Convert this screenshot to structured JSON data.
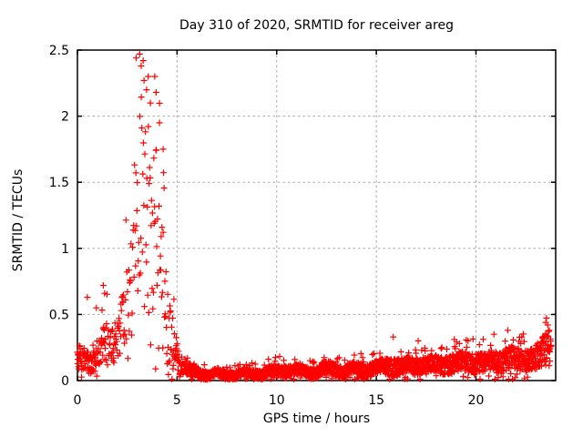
{
  "chart_data": {
    "type": "scatter",
    "title": "Day 310 of 2020, SRMTID for receiver areg",
    "xlabel": "GPS time / hours",
    "ylabel": "SRMTID / TECUs",
    "xlim": [
      0,
      24
    ],
    "ylim": [
      0,
      2.5
    ],
    "xticks": {
      "values": [
        0,
        5,
        10,
        15,
        20
      ],
      "labels": [
        "0",
        "5",
        "10",
        "15",
        "20"
      ]
    },
    "yticks": {
      "values": [
        0,
        0.5,
        1,
        1.5,
        2,
        2.5
      ],
      "labels": [
        "0",
        "0.5",
        "1",
        "1.5",
        "2",
        "2.5"
      ]
    },
    "grid": true,
    "legend": "none",
    "marker": "plus",
    "marker_size_px": 7,
    "marker_color": "#ff0000",
    "grid_color": "#a8a8a8",
    "border_color": "#000000",
    "background_color": "#ffffff",
    "series": [
      {
        "name": "SRMTID",
        "representation": "density_envelope",
        "x_start": 0,
        "x_end": 23.78,
        "envelope_columns": [
          "x_hours",
          "mean_tecu",
          "half_spread_tecu",
          "points_per_hour"
        ],
        "envelope": [
          [
            0.0,
            0.18,
            0.11,
            75
          ],
          [
            0.4,
            0.15,
            0.09,
            72
          ],
          [
            0.75,
            0.12,
            0.07,
            68
          ],
          [
            1.0,
            0.2,
            0.12,
            60
          ],
          [
            1.35,
            0.3,
            0.18,
            55
          ],
          [
            1.7,
            0.24,
            0.13,
            52
          ],
          [
            2.0,
            0.32,
            0.16,
            50
          ],
          [
            2.3,
            0.45,
            0.25,
            48
          ],
          [
            2.6,
            0.7,
            0.42,
            45
          ],
          [
            2.85,
            1.05,
            0.65,
            42
          ],
          [
            3.2,
            1.5,
            0.95,
            40
          ],
          [
            3.45,
            1.4,
            0.92,
            40
          ],
          [
            3.7,
            1.2,
            0.8,
            42
          ],
          [
            4.0,
            1.05,
            0.7,
            45
          ],
          [
            4.25,
            0.8,
            0.58,
            48
          ],
          [
            4.5,
            0.5,
            0.38,
            52
          ],
          [
            4.8,
            0.27,
            0.19,
            60
          ],
          [
            5.1,
            0.14,
            0.1,
            72
          ],
          [
            5.5,
            0.09,
            0.055,
            90
          ],
          [
            6.0,
            0.06,
            0.04,
            112
          ],
          [
            6.5,
            0.05,
            0.032,
            118
          ],
          [
            7.5,
            0.048,
            0.03,
            120
          ],
          [
            8.5,
            0.052,
            0.032,
            120
          ],
          [
            9.5,
            0.06,
            0.035,
            120
          ],
          [
            10.3,
            0.08,
            0.045,
            120
          ],
          [
            11.0,
            0.075,
            0.042,
            120
          ],
          [
            11.8,
            0.065,
            0.04,
            120
          ],
          [
            12.6,
            0.09,
            0.05,
            120
          ],
          [
            13.4,
            0.075,
            0.045,
            120
          ],
          [
            14.2,
            0.085,
            0.05,
            118
          ],
          [
            15.0,
            0.09,
            0.05,
            118
          ],
          [
            15.8,
            0.115,
            0.065,
            115
          ],
          [
            16.5,
            0.1,
            0.06,
            115
          ],
          [
            17.2,
            0.12,
            0.07,
            112
          ],
          [
            18.0,
            0.115,
            0.065,
            112
          ],
          [
            18.8,
            0.13,
            0.075,
            110
          ],
          [
            19.6,
            0.145,
            0.08,
            110
          ],
          [
            20.3,
            0.13,
            0.075,
            108
          ],
          [
            21.0,
            0.15,
            0.085,
            105
          ],
          [
            21.7,
            0.165,
            0.09,
            105
          ],
          [
            22.4,
            0.15,
            0.085,
            100
          ],
          [
            23.0,
            0.17,
            0.095,
            95
          ],
          [
            23.45,
            0.22,
            0.12,
            90
          ],
          [
            23.78,
            0.27,
            0.15,
            85
          ]
        ],
        "outliers": [
          [
            0.5,
            0.63
          ],
          [
            0.95,
            0.55
          ],
          [
            1.3,
            0.72
          ],
          [
            1.36,
            0.66
          ],
          [
            2.95,
            2.44
          ],
          [
            3.12,
            2.47
          ],
          [
            3.2,
            2.38
          ],
          [
            3.3,
            2.42
          ],
          [
            3.34,
            2.27
          ],
          [
            3.47,
            2.2
          ],
          [
            3.55,
            2.3
          ],
          [
            3.66,
            2.1
          ],
          [
            3.88,
            2.3
          ],
          [
            3.95,
            2.18
          ],
          [
            4.12,
            1.95
          ],
          [
            4.3,
            1.75
          ],
          [
            15.85,
            0.33
          ],
          [
            17.1,
            0.3
          ],
          [
            19.6,
            0.3
          ],
          [
            20.9,
            0.35
          ],
          [
            21.6,
            0.38
          ],
          [
            22.3,
            0.33
          ],
          [
            23.5,
            0.44
          ],
          [
            23.6,
            0.42
          ],
          [
            23.68,
            0.38
          ]
        ],
        "band_wobble": {
          "start": 5.8,
          "amplitude": 0.016,
          "period": 1.35
        }
      }
    ]
  }
}
